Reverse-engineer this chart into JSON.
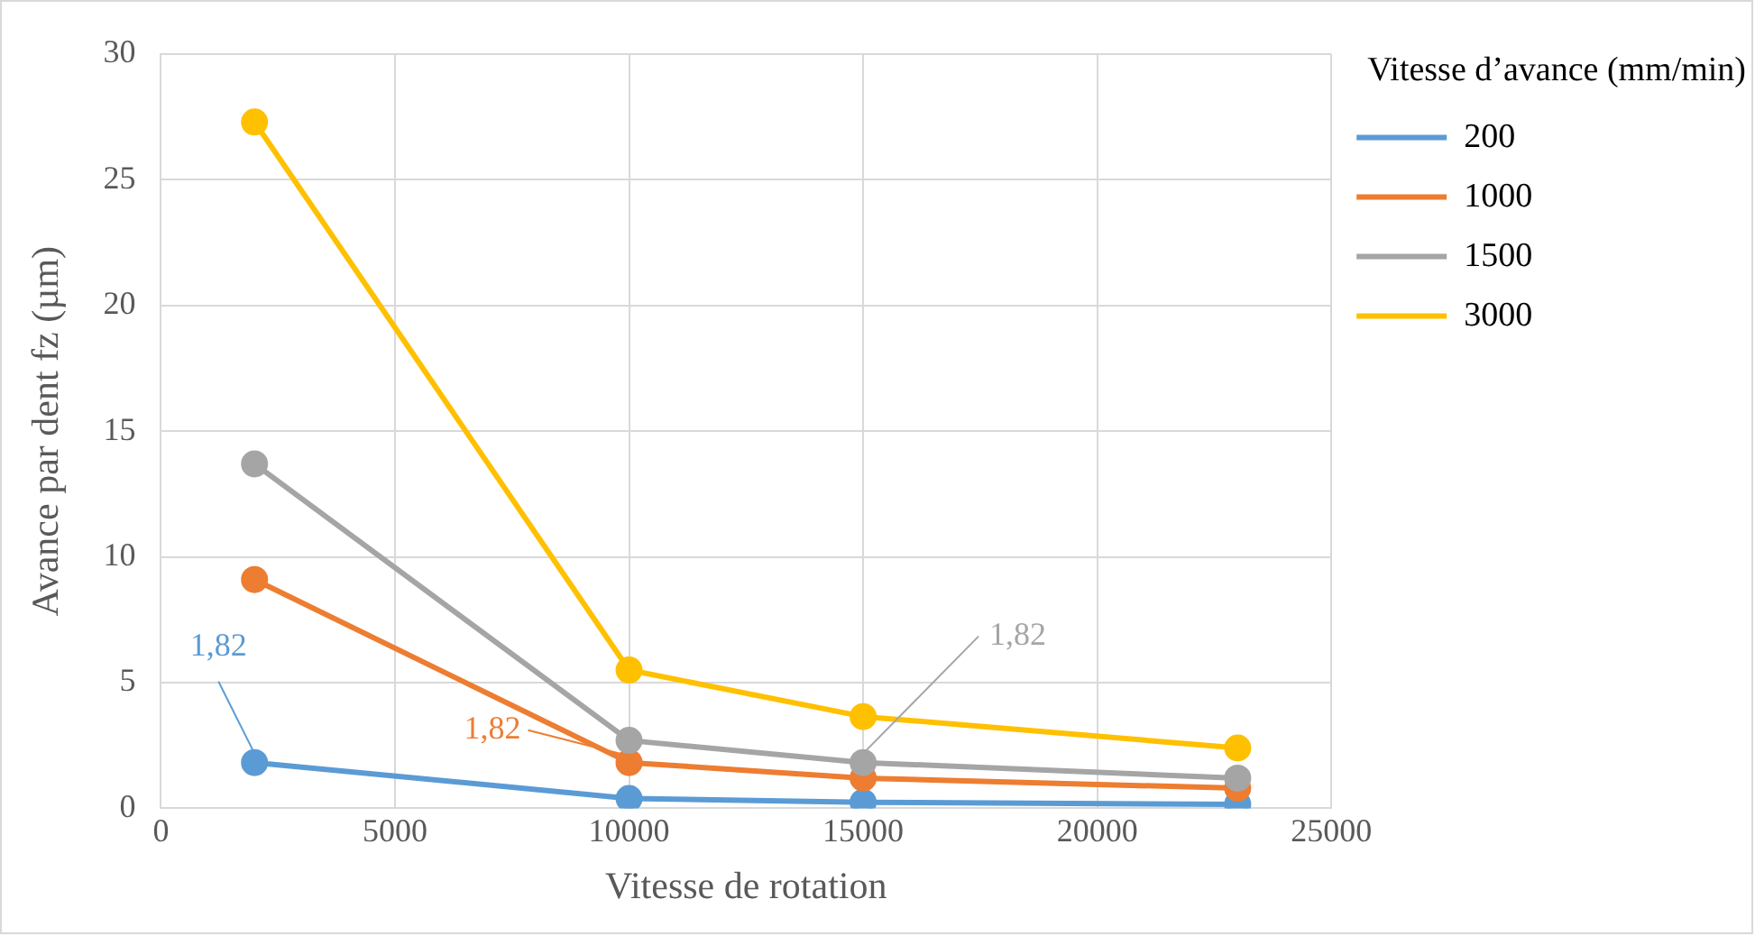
{
  "chart_data": {
    "type": "line",
    "xlabel": "Vitesse de rotation",
    "ylabel": "Avance par dent fz (µm)",
    "legend_title": "Vitesse d’avance (mm/min)",
    "x": [
      2000,
      10000,
      15000,
      23000
    ],
    "series": [
      {
        "name": "200",
        "color": "#5b9bd5",
        "values": [
          1.82,
          0.39,
          0.24,
          0.16
        ]
      },
      {
        "name": "1000",
        "color": "#ed7d31",
        "values": [
          9.1,
          1.82,
          1.2,
          0.8
        ]
      },
      {
        "name": "1500",
        "color": "#a5a5a5",
        "values": [
          13.7,
          2.7,
          1.82,
          1.2
        ]
      },
      {
        "name": "3000",
        "color": "#ffc000",
        "values": [
          27.3,
          5.5,
          3.65,
          2.4
        ]
      }
    ],
    "xlim": [
      0,
      25000
    ],
    "xticks": [
      0,
      5000,
      10000,
      15000,
      20000,
      25000
    ],
    "ylim": [
      0,
      30
    ],
    "yticks": [
      0,
      5,
      10,
      15,
      20,
      25,
      30
    ],
    "grid": true,
    "legend": "right",
    "marker": "circle",
    "line_style": "solid",
    "annotations": [
      {
        "text": "1,82",
        "x": 2000,
        "y": 1.82
      },
      {
        "text": "1,82",
        "x": 10000,
        "y": 1.82
      },
      {
        "text": "1,82",
        "x": 15000,
        "y": 1.82
      }
    ]
  }
}
